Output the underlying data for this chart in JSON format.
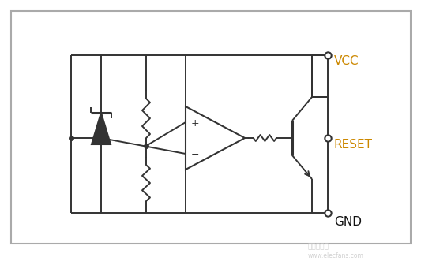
{
  "bg_color": "#ffffff",
  "border_color": "#888888",
  "line_color": "#333333",
  "vcc_color": "#cc8800",
  "reset_color": "#cc8800",
  "gnd_color": "#111111",
  "label_vcc": "VCC",
  "label_reset": "RESET",
  "label_gnd": "GND",
  "watermark1": "电子发烧友",
  "watermark2": "www.elecfans.com",
  "figsize": [
    5.52,
    3.5
  ],
  "dpi": 100
}
